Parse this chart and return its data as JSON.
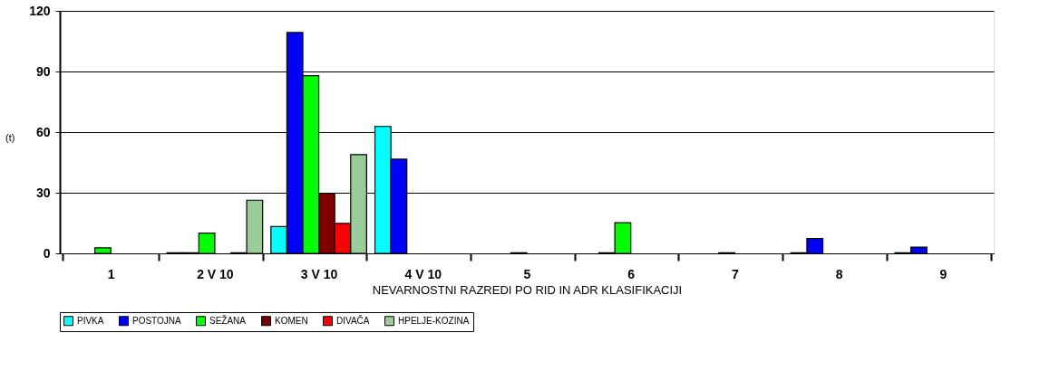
{
  "chart_data": {
    "type": "bar",
    "xlabel": "NEVARNOSTNI RAZREDI PO RID IN ADR KLASIFIKACIJI",
    "ylabel": "(t)",
    "categories": [
      "1",
      "2 V 10",
      "3 V 10",
      "4 V 10",
      "5",
      "6",
      "7",
      "8",
      "9"
    ],
    "series": [
      {
        "name": "PIVKA",
        "color": "#00ffff",
        "values": [
          null,
          0.3,
          13.3,
          62.8,
          null,
          null,
          null,
          0.3,
          0.3
        ]
      },
      {
        "name": "POSTOJNA",
        "color": "#0000ff",
        "values": [
          null,
          0.3,
          109.3,
          46.6,
          null,
          0.3,
          null,
          7.3,
          3.1
        ]
      },
      {
        "name": "SEŽANA",
        "color": "#00ff00",
        "values": [
          2.7,
          10,
          87.9,
          null,
          0.3,
          15.2,
          0.3,
          null,
          null
        ]
      },
      {
        "name": "KOMEN",
        "color": "#800000",
        "values": [
          null,
          null,
          29.7,
          null,
          null,
          null,
          null,
          null,
          null
        ]
      },
      {
        "name": "DIVAČA",
        "color": "#ff0000",
        "values": [
          null,
          0.3,
          14.8,
          null,
          null,
          null,
          null,
          null,
          null
        ]
      },
      {
        "name": "HPELJE-KOZINA",
        "color": "#99cc99",
        "values": [
          null,
          26.3,
          48.9,
          null,
          null,
          null,
          null,
          null,
          null
        ]
      }
    ],
    "ylim": [
      0,
      120
    ],
    "yticks": [
      0,
      30,
      60,
      90,
      120
    ],
    "grid": "y",
    "legend": "bottom"
  }
}
